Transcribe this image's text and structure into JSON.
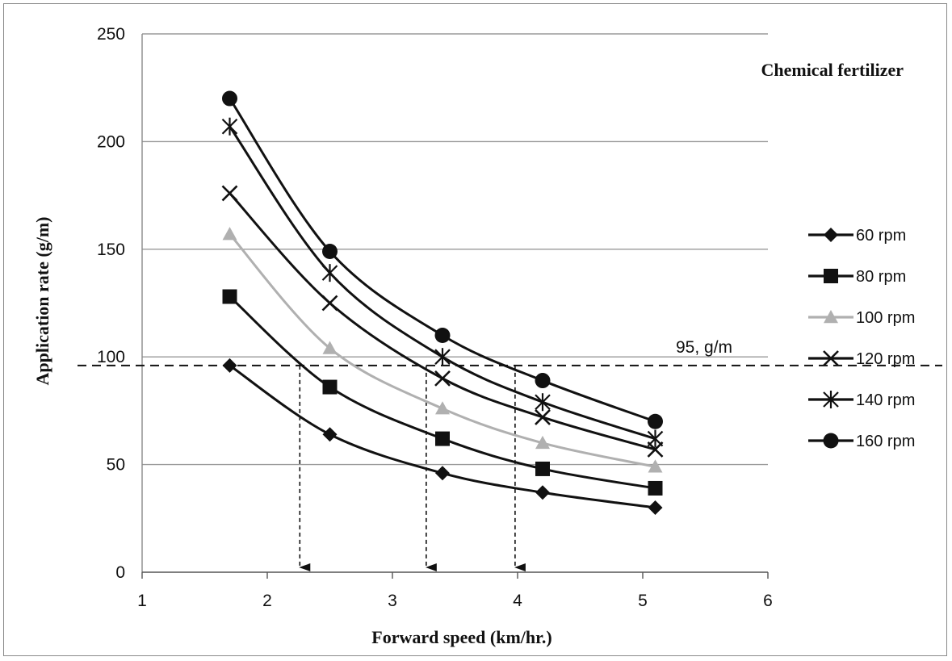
{
  "chart_data": {
    "type": "line",
    "title": "",
    "xlabel": "Forward speed (km/hr.)",
    "ylabel": "Application rate (g/m)",
    "xlim": [
      1,
      6
    ],
    "ylim": [
      0,
      250
    ],
    "x_ticks": [
      "1",
      "2",
      "3",
      "4",
      "5",
      "6"
    ],
    "y_ticks": [
      "0",
      "50",
      "100",
      "150",
      "200",
      "250"
    ],
    "grid": "horizontal",
    "legend_position": "right",
    "annotations": {
      "corner_label": "Chemical fertilizer",
      "reference_label": "95, g/m",
      "reference_y": 96,
      "drop_arrows_x": [
        2.26,
        3.27,
        3.98
      ]
    },
    "x": [
      1.7,
      2.5,
      3.4,
      4.2,
      5.1
    ],
    "series": [
      {
        "name": "60 rpm",
        "values": [
          96,
          64,
          46,
          37,
          30
        ],
        "marker": "diamond",
        "color": "#111111"
      },
      {
        "name": "80 rpm",
        "values": [
          128,
          86,
          62,
          48,
          39
        ],
        "marker": "square",
        "color": "#111111"
      },
      {
        "name": "100 rpm",
        "values": [
          157,
          104,
          76,
          60,
          49
        ],
        "marker": "triangle",
        "color": "#b0b0b0"
      },
      {
        "name": "120 rpm",
        "values": [
          176,
          125,
          90,
          72,
          57
        ],
        "marker": "x",
        "color": "#111111"
      },
      {
        "name": "140 rpm",
        "values": [
          207,
          139,
          100,
          79,
          62
        ],
        "marker": "star",
        "color": "#111111"
      },
      {
        "name": "160 rpm",
        "values": [
          220,
          149,
          110,
          89,
          70
        ],
        "marker": "circle",
        "color": "#111111"
      }
    ]
  }
}
